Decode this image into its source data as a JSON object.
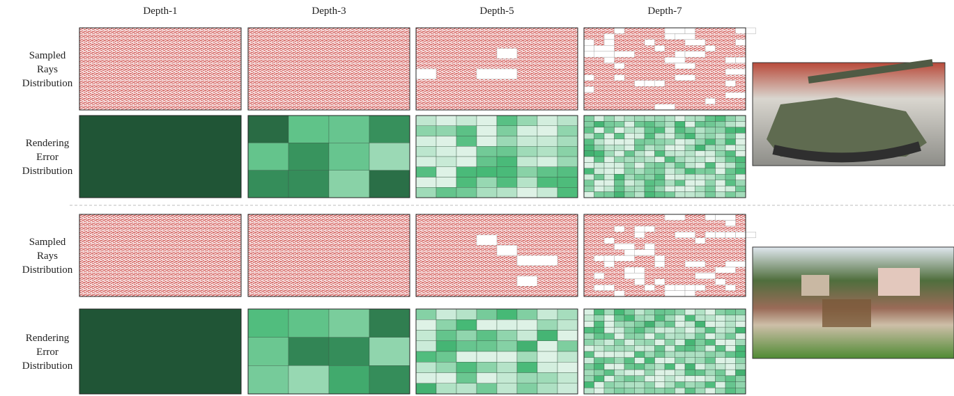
{
  "columns": [
    "Depth-1",
    "Depth-3",
    "Depth-5",
    "Depth-7"
  ],
  "blocks": [
    {
      "rows": [
        {
          "label": [
            "Sampled",
            "Rays",
            "Distribution"
          ]
        },
        {
          "label": [
            "Rendering",
            "Error",
            "Distribution"
          ]
        }
      ]
    },
    {
      "rows": [
        {
          "label": [
            "Sampled",
            "Rays",
            "Distribution"
          ]
        },
        {
          "label": [
            "Rendering",
            "Error",
            "Distribution"
          ]
        }
      ]
    }
  ]
}
